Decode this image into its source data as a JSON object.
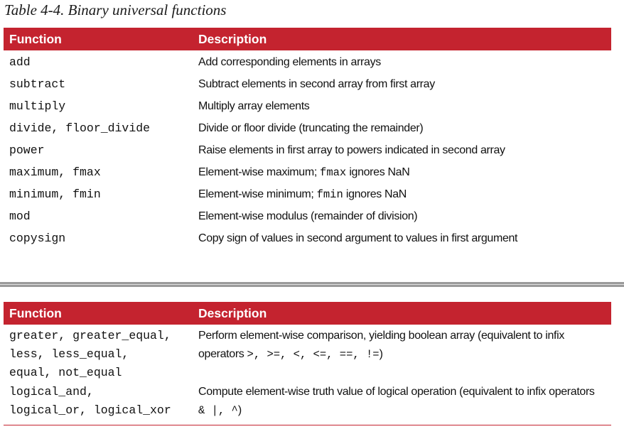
{
  "caption": "Table 4-4. Binary universal functions",
  "table1": {
    "header": {
      "function": "Function",
      "description": "Description"
    },
    "rows": [
      {
        "function": "add",
        "description": "Add corresponding elements in arrays"
      },
      {
        "function": "subtract",
        "description": "Subtract elements in second array from first array"
      },
      {
        "function": "multiply",
        "description": "Multiply array elements"
      },
      {
        "function": "divide, floor_divide",
        "description": "Divide or floor divide (truncating the remainder)"
      },
      {
        "function": "power",
        "description": "Raise elements in first array to powers indicated in second array"
      },
      {
        "function": "maximum, fmax",
        "description_pre": "Element-wise maximum; ",
        "description_code": "fmax",
        "description_post": " ignores NaN"
      },
      {
        "function": "minimum, fmin",
        "description_pre": "Element-wise minimum; ",
        "description_code": "fmin",
        "description_post": " ignores NaN"
      },
      {
        "function": "mod",
        "description": "Element-wise modulus (remainder of division)"
      },
      {
        "function": "copysign",
        "description": "Copy sign of values in second argument to values in first argument"
      }
    ]
  },
  "table2": {
    "header": {
      "function": "Function",
      "description": "Description"
    },
    "rows": [
      {
        "function_lines": [
          "greater, greater_equal,",
          "less, less_equal,",
          "equal, not_equal"
        ],
        "description_line1": "Perform element-wise comparison, yielding boolean array (equivalent to infix",
        "description_line2_pre": "operators ",
        "description_line2_code": ">, >=, <, <=, ==, !=",
        "description_line2_post": ")"
      },
      {
        "function_lines": [
          "logical_and,",
          "logical_or, logical_xor"
        ],
        "description_line1": "Compute element-wise truth value of logical operation (equivalent to infix operators",
        "description_line2_code": "& |, ^",
        "description_line2_post": ")"
      }
    ]
  }
}
